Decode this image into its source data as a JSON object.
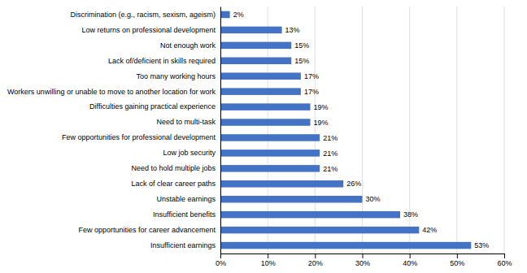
{
  "chart_data": {
    "type": "bar",
    "orientation": "horizontal",
    "categories": [
      "Discrimination (e.g., racism, sexism, ageism)",
      "Low returns on professional development",
      "Not enough work",
      "Lack of/deficient in skills required",
      "Too many working hours",
      "Workers unwilling or unable to move to another location for work",
      "Difficulties gaining practical experience",
      "Need to multi-task",
      "Few opportunities for professional development",
      "Low job security",
      "Need to hold multiple jobs",
      "Lack of clear career paths",
      "Unstable earnings",
      "Insufficient benefits",
      "Few opportunities for career advancement",
      "Insufficient earnings"
    ],
    "values": [
      2,
      13,
      15,
      15,
      17,
      17,
      19,
      19,
      21,
      21,
      21,
      26,
      30,
      38,
      42,
      53
    ],
    "value_labels": [
      "2%",
      "13%",
      "15%",
      "15%",
      "17%",
      "17%",
      "19%",
      "19%",
      "21%",
      "21%",
      "21%",
      "26%",
      "30%",
      "38%",
      "42%",
      "53%"
    ],
    "data_labels": true,
    "color": "#4472C4",
    "xlim": [
      0,
      60
    ],
    "xticks": [
      {
        "value": 0,
        "label": "0%"
      },
      {
        "value": 10,
        "label": "10%"
      },
      {
        "value": 20,
        "label": "20%"
      },
      {
        "value": 30,
        "label": "30%"
      },
      {
        "value": 40,
        "label": "40%"
      },
      {
        "value": 50,
        "label": "50%"
      },
      {
        "value": 60,
        "label": "60%"
      }
    ],
    "grid": true
  }
}
